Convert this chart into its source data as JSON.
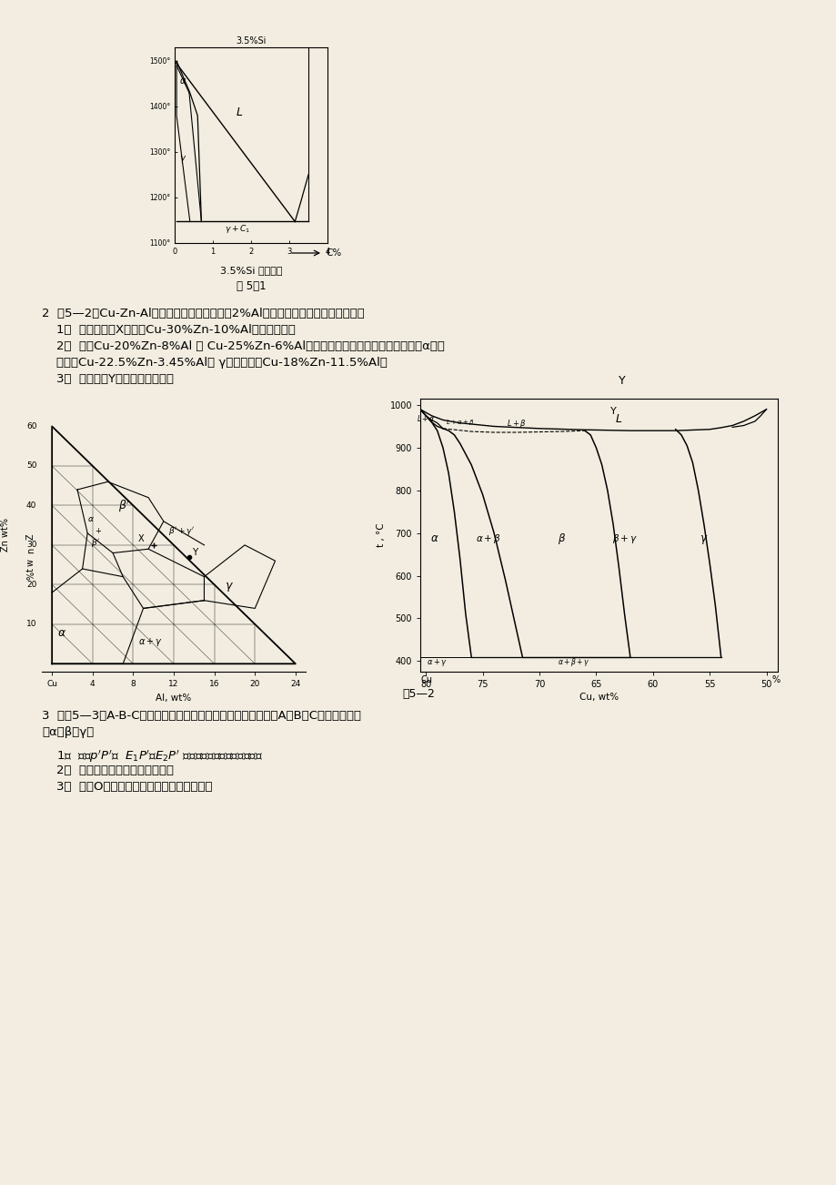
{
  "bg_color": "#f2ede0",
  "text_color": "#1a1a1a",
  "fig1_caption1": "3.5%Si 垂直截面",
  "fig1_fignum": "图 5—1",
  "q2_text": "2  图5—2为Cu-Zn-Al合金室温下的等温截面和2%Al的垂直截面图，回答下列问题：",
  "q2_sub1": "1）  在图中标出X合金（Cu-30%Zn-10%Al）的成分点。",
  "q2_sub2": "2）  计算Cu-20%Zn-8%Al 和 Cu-25%Zn-6%Al合金中室温下各相的百分含量，其中α相成",
  "q2_sub2b": "分点为Cu-22.5%Zn-3.45%Al， γ相成分点为Cu-18%Zn-11.5%Al。",
  "q2_sub3": "3）  分析图中Y合金的凝固过程。",
  "fig2_fignum": "图5—2",
  "q3_text": "3  如图5—3是A-B-C三元系合金凝固时各相区，界面的投影图，A、B、C分别形成固溶",
  "q3_text2": "体α、β、γ。",
  "q3_sub2": "2）  写出图中的四相平衡反应式。",
  "q3_sub3": "3）  说明O合金凝固平衡凝固所发生的相变。"
}
